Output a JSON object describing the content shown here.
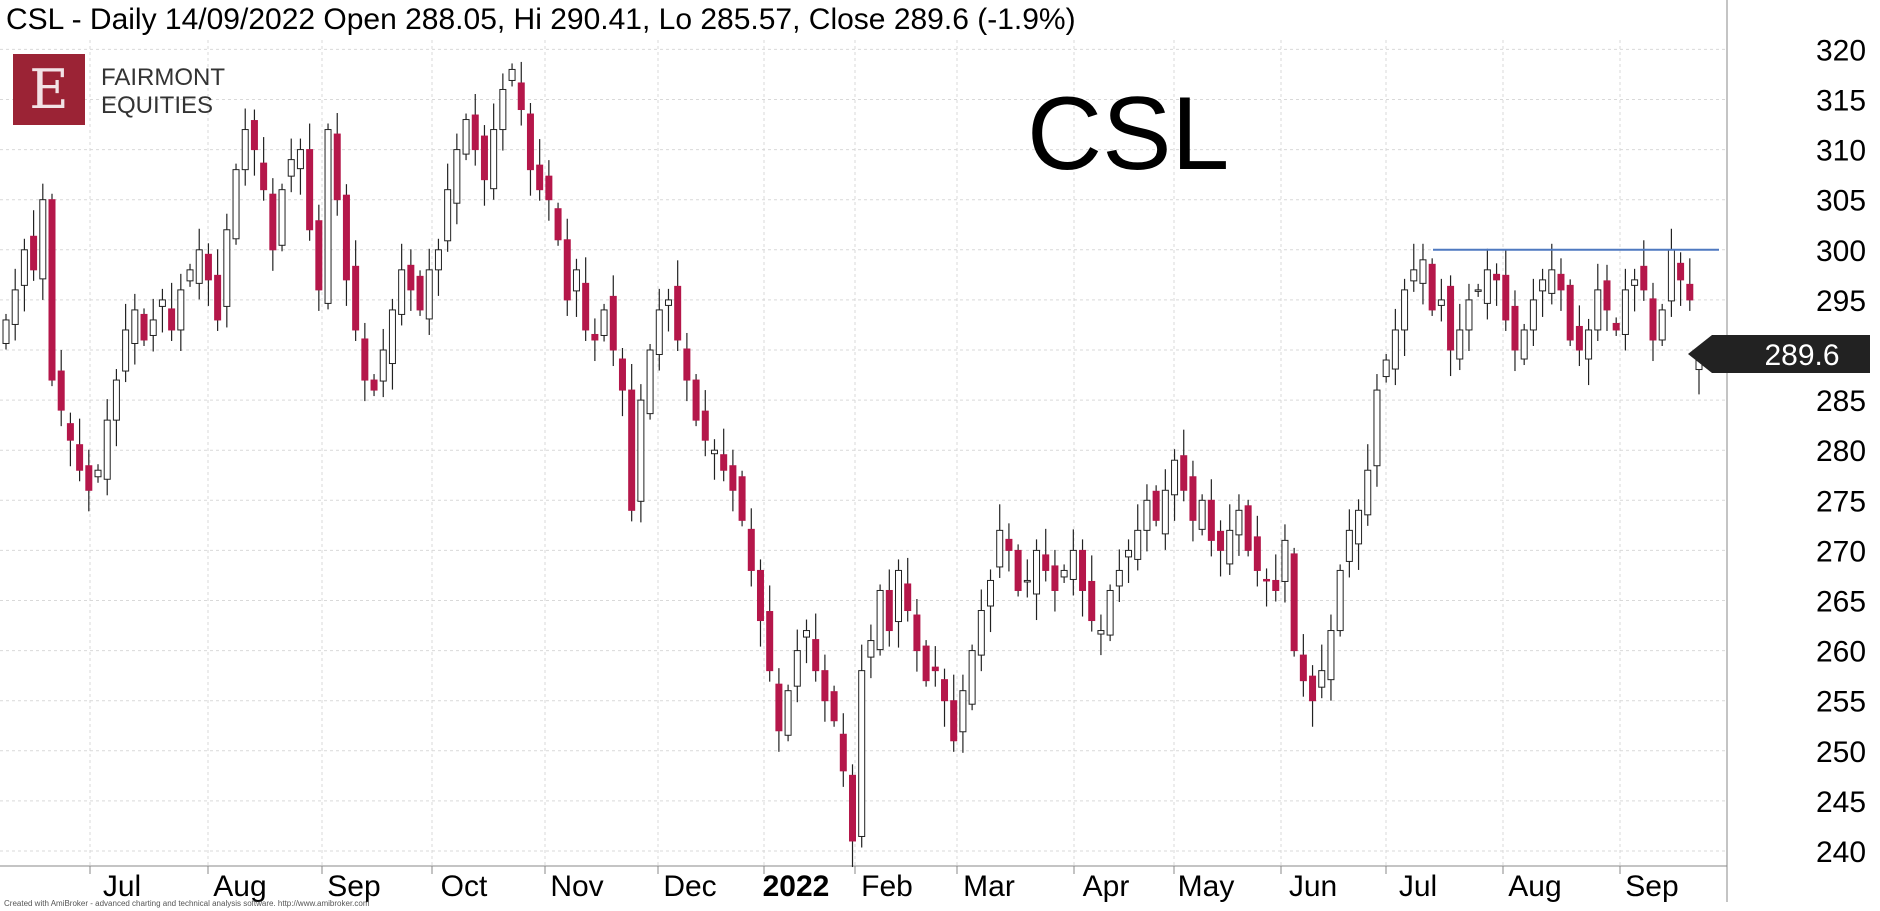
{
  "header": {
    "title": "CSL - Daily 14/09/2022 Open 288.05, Hi 290.41, Lo 285.57, Close 289.6 (-1.9%)"
  },
  "logo": {
    "letter": "E",
    "line1": "FAIRMONT",
    "line2": "EQUITIES"
  },
  "symbol_label": "CSL",
  "credit": "Created with AmiBroker - advanced charting and technical analysis software. http://www.amibroker.com",
  "colors": {
    "up": "#ffffff",
    "down": "#b5174a",
    "outline": "#222222",
    "resistance": "#4f79c0",
    "grid": "#d9d9d9",
    "price_tag": "#222222"
  },
  "chart_data": {
    "type": "candlestick",
    "title": "CSL - Daily 14/09/2022 Open 288.05, Hi 290.41, Lo 285.57, Close 289.6 (-1.9%)",
    "ylim": [
      239,
      321
    ],
    "yticks": [
      240,
      245,
      250,
      255,
      260,
      265,
      270,
      275,
      280,
      285,
      290,
      295,
      300,
      305,
      310,
      315,
      320
    ],
    "months": [
      "Jul",
      "Aug",
      "Sep",
      "Oct",
      "Nov",
      "Dec",
      "2022",
      "Feb",
      "Mar",
      "Apr",
      "May",
      "Jun",
      "Jul",
      "Aug",
      "Sep"
    ],
    "last_price": "289.6",
    "last_bar": {
      "open": 288.05,
      "high": 290.41,
      "low": 285.57,
      "close": 289.6
    },
    "resistance": {
      "value": 300,
      "from": "Jul 2022",
      "to": "Sep 2022"
    },
    "closes": [
      293,
      296,
      300,
      298,
      305,
      287,
      284,
      281,
      278,
      276,
      278,
      283,
      287,
      292,
      294,
      291,
      293,
      295,
      292,
      296,
      298,
      300,
      297,
      293,
      302,
      308,
      312,
      310,
      306,
      300,
      306,
      309,
      310,
      302,
      296,
      312,
      305,
      297,
      292,
      287,
      286,
      290,
      294,
      298,
      296,
      294,
      298,
      300,
      306,
      310,
      313,
      310,
      307,
      312,
      316,
      318,
      314,
      308,
      306,
      305,
      301,
      295,
      298,
      292,
      291,
      294,
      290,
      286,
      274,
      285,
      290,
      294,
      295,
      291,
      287,
      283,
      281,
      280,
      278,
      276,
      273,
      268,
      263,
      258,
      252,
      256,
      260,
      262,
      258,
      255,
      253,
      248,
      241,
      258,
      261,
      266,
      262,
      268,
      264,
      260,
      257,
      258,
      255,
      251,
      256,
      260,
      264,
      267,
      272,
      270,
      266,
      267,
      270,
      268,
      266,
      268,
      270,
      266,
      263,
      262,
      266,
      268,
      270,
      272,
      275,
      273,
      276,
      279,
      276,
      273,
      275,
      271,
      270,
      272,
      274,
      270,
      268,
      267,
      266,
      271,
      260,
      257,
      255,
      258,
      262,
      268,
      272,
      274,
      278,
      286,
      289,
      292,
      296,
      298,
      299,
      294,
      295,
      290,
      292,
      295,
      296,
      298,
      297,
      293,
      290,
      292,
      295,
      297,
      298,
      296,
      291,
      290,
      292,
      296,
      294,
      292,
      296,
      297,
      296,
      291,
      294,
      300,
      297,
      295,
      289.6
    ]
  }
}
